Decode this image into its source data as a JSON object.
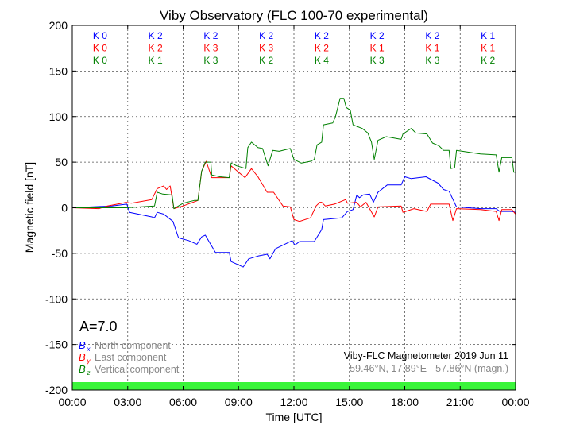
{
  "chart_data": {
    "type": "line",
    "title": "Viby Observatory (FLC 100-70 experimental)",
    "xlabel": "Time [UTC]",
    "ylabel": "Magnetic field [nT]",
    "xlim": [
      0,
      24
    ],
    "ylim": [
      -200,
      200
    ],
    "grid": true,
    "x_tick_labels": [
      "00:00",
      "03:00",
      "06:00",
      "09:00",
      "12:00",
      "15:00",
      "18:00",
      "21:00",
      "00:00"
    ],
    "y_ticks": [
      200,
      150,
      100,
      50,
      0,
      -50,
      -100,
      -150,
      -200
    ],
    "k_indices": {
      "colors": [
        "#0000ff",
        "#ff0000",
        "#008000"
      ],
      "rows": [
        [
          "K 0",
          "K 2",
          "K 2",
          "K 2",
          "K 2",
          "K 2",
          "K 2",
          "K 1"
        ],
        [
          "K 0",
          "K 2",
          "K 3",
          "K 3",
          "K 2",
          "K 1",
          "K 1",
          "K 1"
        ],
        [
          "K 0",
          "K 1",
          "K 3",
          "K 2",
          "K 4",
          "K 3",
          "K 3",
          "K 2"
        ]
      ]
    },
    "activity_label": "A=7.0",
    "status_bar_color": "#39f539",
    "legend": [
      {
        "symbol": "B",
        "sub": "x",
        "label": "North component",
        "color": "#0000ff"
      },
      {
        "symbol": "B",
        "sub": "y",
        "label": "East component",
        "color": "#ff0000"
      },
      {
        "symbol": "B",
        "sub": "z",
        "label": "Vertical component",
        "color": "#008000"
      }
    ],
    "info_line1": "Viby-FLC Magnetometer 2019 Jun 11",
    "info_line2": "59.46°N, 17.89°E - 57.86°N (magn.)",
    "series": [
      {
        "name": "Bx North component",
        "color": "#0000ff",
        "points": [
          [
            0,
            0
          ],
          [
            2.15,
            2
          ],
          [
            2.95,
            4
          ],
          [
            3.1,
            -5
          ],
          [
            4.3,
            -10
          ],
          [
            4.45,
            -11
          ],
          [
            4.6,
            -5
          ],
          [
            4.95,
            -7
          ],
          [
            5.45,
            -15
          ],
          [
            5.75,
            -33
          ],
          [
            6.3,
            -36
          ],
          [
            6.75,
            -40
          ],
          [
            7.0,
            -32
          ],
          [
            7.2,
            -30
          ],
          [
            7.4,
            -37
          ],
          [
            7.75,
            -49
          ],
          [
            8.5,
            -49
          ],
          [
            8.6,
            -59
          ],
          [
            9.25,
            -65
          ],
          [
            9.55,
            -56
          ],
          [
            10.05,
            -53
          ],
          [
            10.55,
            -51
          ],
          [
            10.7,
            -56
          ],
          [
            11.0,
            -45
          ],
          [
            11.5,
            -40
          ],
          [
            11.9,
            -36
          ],
          [
            12.05,
            -41
          ],
          [
            12.3,
            -37
          ],
          [
            13.1,
            -37
          ],
          [
            13.5,
            -24
          ],
          [
            13.6,
            -13
          ],
          [
            14.6,
            -11
          ],
          [
            14.9,
            -4
          ],
          [
            15.2,
            -2
          ],
          [
            15.4,
            14
          ],
          [
            15.55,
            11
          ],
          [
            15.75,
            14
          ],
          [
            16.1,
            15
          ],
          [
            16.3,
            6
          ],
          [
            16.55,
            17
          ],
          [
            17.05,
            25
          ],
          [
            17.8,
            25
          ],
          [
            18.0,
            34
          ],
          [
            18.35,
            32
          ],
          [
            19.15,
            34
          ],
          [
            19.8,
            27
          ],
          [
            20.1,
            20
          ],
          [
            20.4,
            18
          ],
          [
            20.8,
            1
          ],
          [
            22.1,
            -1
          ],
          [
            22.95,
            -1
          ],
          [
            23.15,
            -4
          ],
          [
            23.8,
            -4
          ],
          [
            24,
            -5
          ]
        ]
      },
      {
        "name": "By East component",
        "color": "#ff0000",
        "points": [
          [
            0,
            0
          ],
          [
            1.44,
            -1
          ],
          [
            1.9,
            2
          ],
          [
            2.7,
            5
          ],
          [
            2.9,
            6
          ],
          [
            3.2,
            5
          ],
          [
            4.3,
            9
          ],
          [
            4.6,
            21
          ],
          [
            4.95,
            24
          ],
          [
            5.1,
            20
          ],
          [
            5.3,
            24
          ],
          [
            5.5,
            -1
          ],
          [
            6.0,
            2
          ],
          [
            6.8,
            8
          ],
          [
            7.0,
            40
          ],
          [
            7.25,
            51
          ],
          [
            7.55,
            33
          ],
          [
            8.5,
            33
          ],
          [
            8.6,
            46
          ],
          [
            9.35,
            33
          ],
          [
            9.7,
            43
          ],
          [
            10.05,
            34
          ],
          [
            10.55,
            17
          ],
          [
            10.9,
            17
          ],
          [
            11.4,
            2
          ],
          [
            11.8,
            1
          ],
          [
            12.0,
            -13
          ],
          [
            12.3,
            -15
          ],
          [
            12.9,
            -11
          ],
          [
            13.2,
            2
          ],
          [
            13.4,
            6
          ],
          [
            13.5,
            6
          ],
          [
            13.7,
            2
          ],
          [
            14.2,
            4
          ],
          [
            14.8,
            9
          ],
          [
            14.9,
            5
          ],
          [
            15.4,
            6
          ],
          [
            15.6,
            1
          ],
          [
            15.9,
            6
          ],
          [
            16.35,
            -10
          ],
          [
            16.55,
            1
          ],
          [
            17.8,
            2
          ],
          [
            17.9,
            -5
          ],
          [
            18.5,
            -1
          ],
          [
            19.2,
            -4
          ],
          [
            19.4,
            4
          ],
          [
            20.4,
            4
          ],
          [
            20.6,
            -14
          ],
          [
            20.8,
            -1
          ],
          [
            22.1,
            -2
          ],
          [
            22.95,
            -4
          ],
          [
            23.1,
            -14
          ],
          [
            23.25,
            -2
          ],
          [
            23.8,
            -2
          ],
          [
            24,
            -7
          ]
        ]
      },
      {
        "name": "Bz Vertical component",
        "color": "#008000",
        "points": [
          [
            0,
            0
          ],
          [
            2.9,
            0
          ],
          [
            4.45,
            2
          ],
          [
            4.6,
            17
          ],
          [
            4.9,
            15
          ],
          [
            5.4,
            14
          ],
          [
            5.5,
            -1
          ],
          [
            6.0,
            5
          ],
          [
            6.6,
            8
          ],
          [
            6.8,
            8
          ],
          [
            7.0,
            40
          ],
          [
            7.2,
            50
          ],
          [
            7.5,
            50
          ],
          [
            7.55,
            36
          ],
          [
            8.0,
            34
          ],
          [
            8.5,
            33
          ],
          [
            8.6,
            49
          ],
          [
            8.9,
            46
          ],
          [
            9.4,
            43
          ],
          [
            9.5,
            66
          ],
          [
            9.7,
            72
          ],
          [
            10.05,
            66
          ],
          [
            10.3,
            65
          ],
          [
            10.6,
            46
          ],
          [
            10.85,
            63
          ],
          [
            11.2,
            62
          ],
          [
            11.8,
            65
          ],
          [
            12.0,
            53
          ],
          [
            12.4,
            49
          ],
          [
            12.9,
            51
          ],
          [
            13.1,
            53
          ],
          [
            13.25,
            69
          ],
          [
            13.5,
            72
          ],
          [
            13.6,
            91
          ],
          [
            14.1,
            93
          ],
          [
            14.25,
            100
          ],
          [
            14.5,
            120
          ],
          [
            14.7,
            120
          ],
          [
            14.83,
            110
          ],
          [
            15.05,
            107
          ],
          [
            15.2,
            91
          ],
          [
            15.7,
            87
          ],
          [
            16.0,
            82
          ],
          [
            16.2,
            72
          ],
          [
            16.35,
            53
          ],
          [
            16.55,
            74
          ],
          [
            17.0,
            78
          ],
          [
            17.8,
            75
          ],
          [
            17.9,
            81
          ],
          [
            18.35,
            87
          ],
          [
            18.6,
            82
          ],
          [
            19.2,
            81
          ],
          [
            19.5,
            71
          ],
          [
            19.85,
            68
          ],
          [
            20.1,
            63
          ],
          [
            20.4,
            63
          ],
          [
            20.5,
            43
          ],
          [
            20.7,
            44
          ],
          [
            20.8,
            63
          ],
          [
            22.1,
            59
          ],
          [
            22.95,
            58
          ],
          [
            23.1,
            39
          ],
          [
            23.25,
            55
          ],
          [
            23.8,
            55
          ],
          [
            23.9,
            39
          ],
          [
            24,
            39
          ]
        ]
      }
    ]
  }
}
